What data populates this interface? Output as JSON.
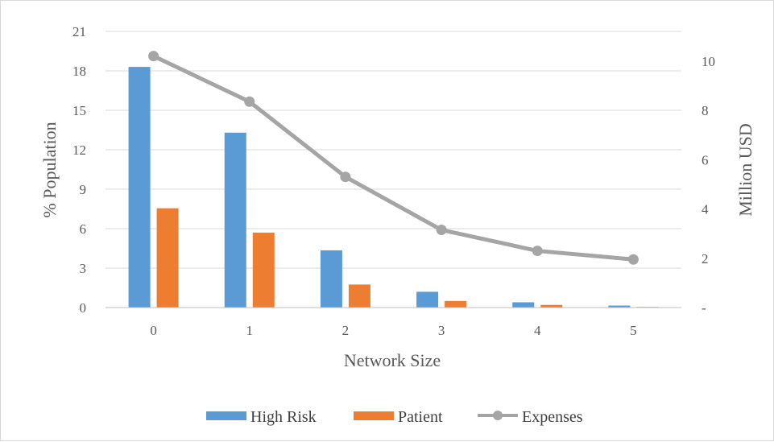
{
  "chart_data": {
    "type": "bar",
    "categories": [
      "0",
      "1",
      "2",
      "3",
      "4",
      "5"
    ],
    "series": [
      {
        "name": "High Risk",
        "type": "bar",
        "axis": "left",
        "color": "#5b9bd5",
        "values": [
          18.3,
          13.3,
          4.35,
          1.2,
          0.4,
          0.15
        ]
      },
      {
        "name": "Patient",
        "type": "bar",
        "axis": "left",
        "color": "#ed7d31",
        "values": [
          7.55,
          5.7,
          1.75,
          0.5,
          0.2,
          0.05
        ]
      },
      {
        "name": "Expenses",
        "type": "line",
        "axis": "right",
        "color": "#a5a5a5",
        "marker": "circle",
        "values": [
          10.2,
          8.35,
          5.3,
          3.15,
          2.3,
          1.95
        ]
      }
    ],
    "xlabel": "Network Size",
    "ylabel": "% Population",
    "y2label": "Million USD",
    "ylim": [
      0,
      21
    ],
    "yticks": [
      "0",
      "3",
      "6",
      "9",
      "12",
      "15",
      "18",
      "21"
    ],
    "y2lim": [
      0,
      11.2
    ],
    "y2ticks": [
      "-",
      "2",
      "4",
      "6",
      "8",
      "10"
    ],
    "grid": true,
    "legend_position": "bottom"
  }
}
